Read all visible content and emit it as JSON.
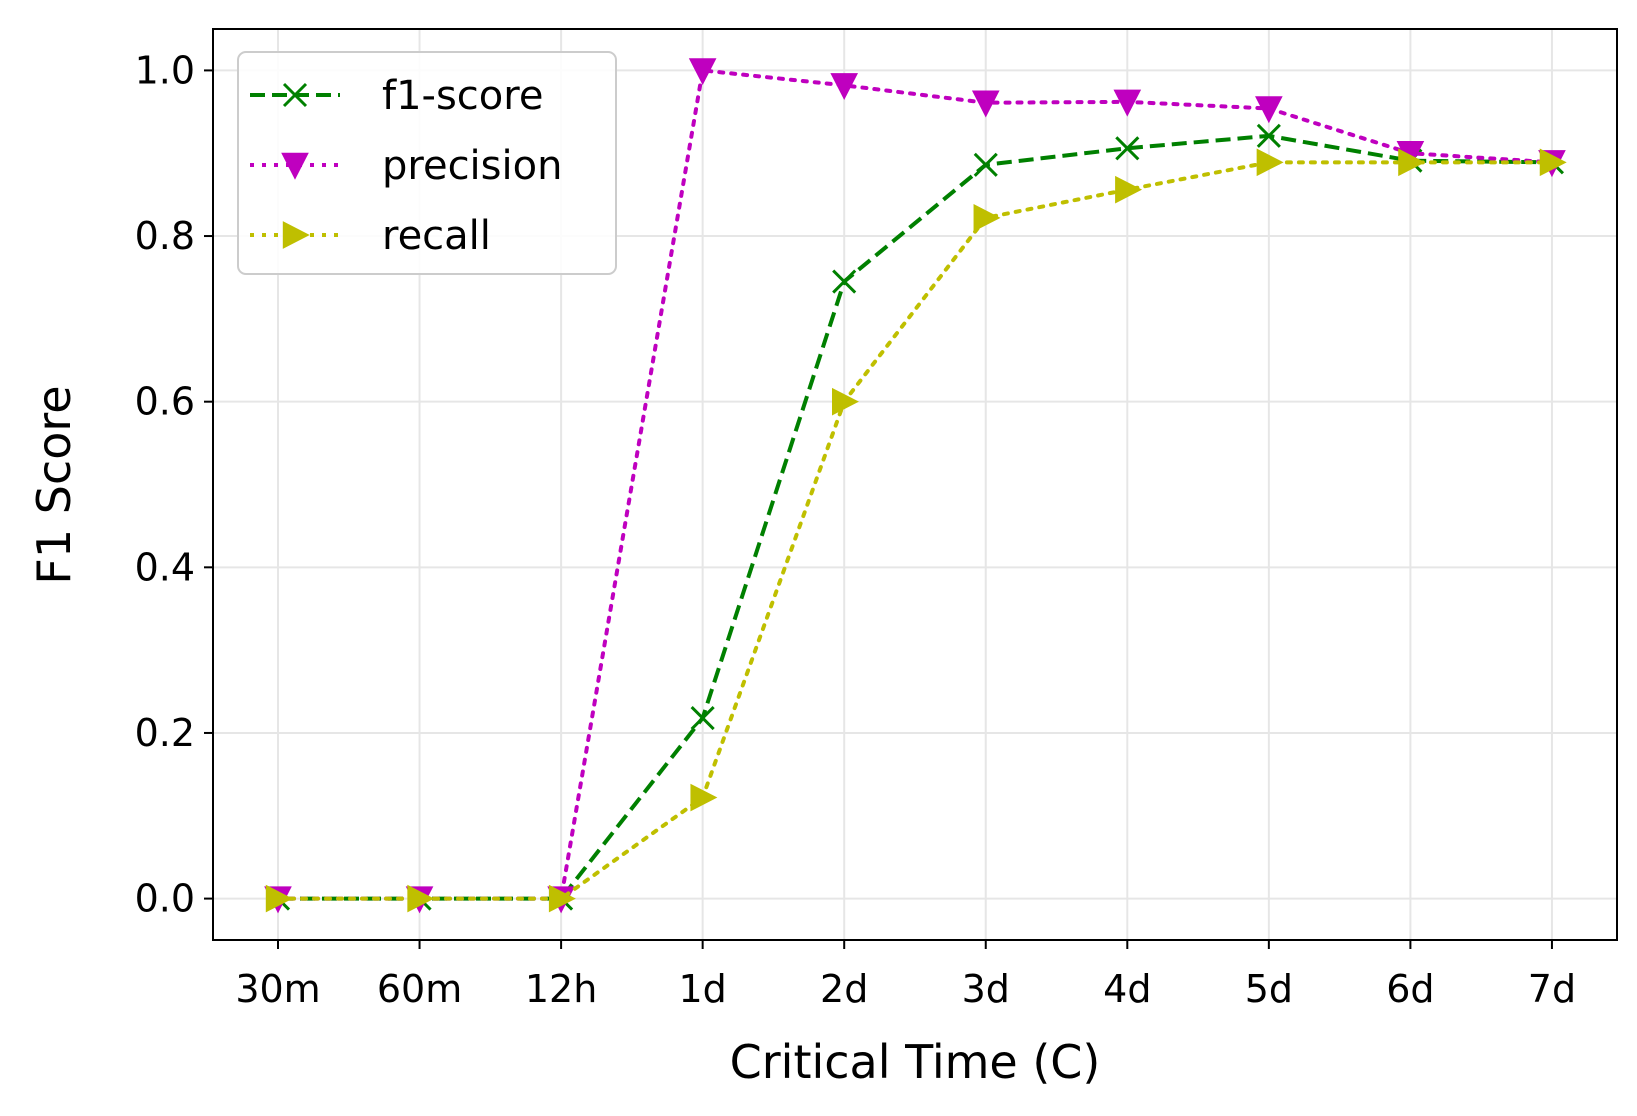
{
  "chart_data": {
    "type": "line",
    "title": "",
    "xlabel": "Critical Time (C)",
    "ylabel": "F1 Score",
    "categories": [
      "30m",
      "60m",
      "12h",
      "1d",
      "2d",
      "3d",
      "4d",
      "5d",
      "6d",
      "7d"
    ],
    "yticks": [
      "0.0",
      "0.2",
      "0.4",
      "0.6",
      "0.8",
      "1.0"
    ],
    "ylim": [
      -0.05,
      1.05
    ],
    "grid": true,
    "legend_position": "top-left",
    "series": [
      {
        "name": "f1-score",
        "values": [
          0.0,
          0.0,
          0.0,
          0.218,
          0.745,
          0.886,
          0.906,
          0.921,
          0.891,
          0.889
        ],
        "color": "#008000",
        "line_style": "dashed",
        "marker": "x"
      },
      {
        "name": "precision",
        "values": [
          0.0,
          0.0,
          0.0,
          1.0,
          0.982,
          0.961,
          0.962,
          0.954,
          0.9,
          0.889
        ],
        "color": "#bf00bf",
        "line_style": "dotted",
        "marker": "triangle-down"
      },
      {
        "name": "recall",
        "values": [
          0.0,
          0.0,
          0.0,
          0.122,
          0.6,
          0.822,
          0.856,
          0.889,
          0.889,
          0.889
        ],
        "color": "#bfbf00",
        "line_style": "dotted",
        "marker": "triangle-right"
      }
    ]
  }
}
